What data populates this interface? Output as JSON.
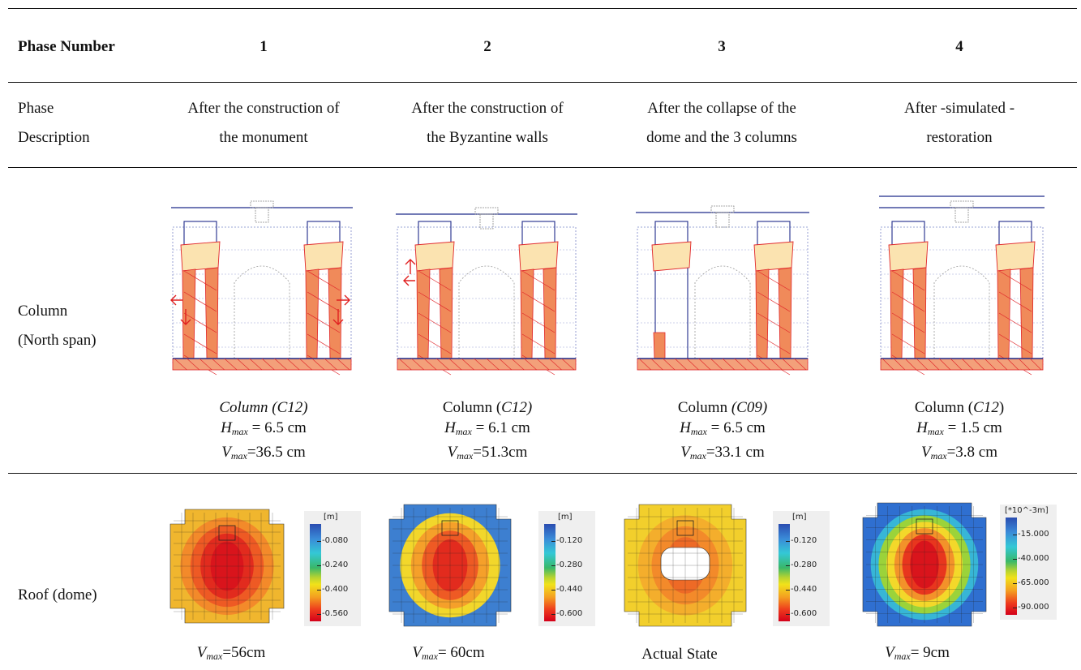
{
  "header": {
    "label": "Phase Number",
    "phases": [
      "1",
      "2",
      "3",
      "4"
    ]
  },
  "description": {
    "label_lines": [
      "Phase",
      "Description"
    ],
    "items": [
      [
        "After the construction of",
        "the monument"
      ],
      [
        "After the construction of",
        "the Byzantine walls"
      ],
      [
        "After the collapse of the",
        "dome and the 3  columns"
      ],
      [
        "After -simulated -",
        "restoration"
      ]
    ]
  },
  "column_row": {
    "label_lines": [
      "Column",
      "(North span)"
    ],
    "captions": [
      {
        "title_prefix": "",
        "title_italic": "Column (C12)",
        "title_suffix": "",
        "h": "6.5 cm",
        "v": "36.5 cm",
        "h_sep": " = ",
        "v_sep": "="
      },
      {
        "title_prefix": "Column (",
        "title_italic": "C12)",
        "title_suffix": "",
        "h": "6.1 cm",
        "v": "51.3cm",
        "h_sep": " = ",
        "v_sep": "="
      },
      {
        "title_prefix": "Column ",
        "title_italic": "(C09)",
        "title_suffix": "",
        "h": "6.5 cm",
        "v": "33.1 cm",
        "h_sep": " = ",
        "v_sep": "="
      },
      {
        "title_prefix": "Column (",
        "title_italic": "C12",
        "title_suffix": ")",
        "h": "1.5 cm",
        "v": "3.8 cm",
        "h_sep": " = ",
        "v_sep": "="
      }
    ],
    "h_symbol": "H",
    "v_symbol": "V",
    "sub": "max"
  },
  "roof_row": {
    "label": "Roof (dome)",
    "captions": [
      {
        "plain": "",
        "v": "56cm",
        "sep": "="
      },
      {
        "plain": "",
        "v": " 60cm",
        "sep": "="
      },
      {
        "plain": "Actual State",
        "v": "",
        "sep": ""
      },
      {
        "plain": "",
        "v": " 9cm",
        "sep": "="
      }
    ],
    "colorbars": [
      {
        "unit": "[m]",
        "ticks": [
          "-0.080",
          "-0.240",
          "-0.400",
          "-0.560"
        ]
      },
      {
        "unit": "[m]",
        "ticks": [
          "-0.120",
          "-0.280",
          "-0.440",
          "-0.600"
        ]
      },
      {
        "unit": "[m]",
        "ticks": [
          "-0.120",
          "-0.280",
          "-0.440",
          "-0.600"
        ]
      },
      {
        "unit": "[*10^-3m]",
        "ticks": [
          "-15.000",
          "-40.000",
          "-65.000",
          "-90.000"
        ]
      }
    ]
  },
  "colors": {
    "outline_blue": "#1f2a8a",
    "crack_red": "#e0262a",
    "fill_light": "#fbe3b0",
    "fill_dark": "#f08a5a",
    "arrow_red": "#e02020"
  }
}
